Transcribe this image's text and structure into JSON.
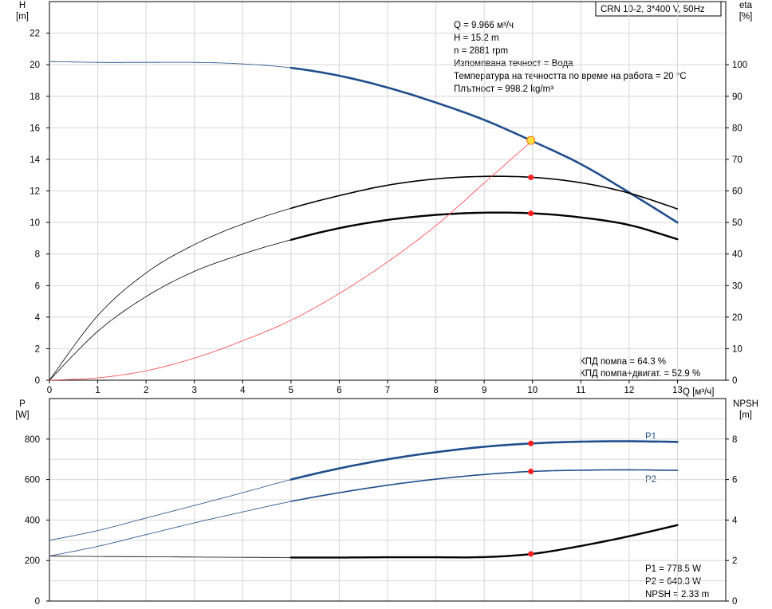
{
  "chart_data": [
    {
      "type": "line",
      "title": "CRN 10-2, 3*400 V, 50Hz",
      "xlabel": "Q [м³/ч]",
      "ylabel_left": [
        "H",
        "[m]"
      ],
      "ylabel_right": [
        "eta",
        "[%]"
      ],
      "xlim": [
        0,
        14
      ],
      "x_ticks": [
        0,
        1,
        2,
        3,
        4,
        5,
        6,
        7,
        8,
        9,
        10,
        11,
        12,
        13
      ],
      "ylim_left": [
        0,
        24
      ],
      "y_ticks_left": [
        0,
        2,
        4,
        6,
        8,
        10,
        12,
        14,
        16,
        18,
        20,
        22
      ],
      "ylim_right": [
        0,
        120
      ],
      "y_ticks_right": [
        0,
        10,
        20,
        30,
        40,
        50,
        60,
        70,
        80,
        90,
        100
      ],
      "grid": true,
      "info_lines": [
        "Q = 9.966 м³/ч",
        "H = 15.2 m",
        "n = 2881 rpm",
        "Изпомпвана течност = Вода",
        "Температура на течността по време на работа = 20 °C",
        "Плътност = 998.2 kg/m³"
      ],
      "efficiency_lines": [
        "КПД помпа = 64.3 %",
        "КПД помпа+двигат. = 52.9 %"
      ],
      "series": [
        {
          "axis": "left",
          "color": "#1f4e8c",
          "x": [
            0,
            1,
            2,
            3,
            4,
            5,
            6,
            7,
            8,
            9,
            10,
            11,
            12,
            13
          ],
          "values": [
            20.2,
            20.15,
            20.15,
            20.15,
            20.05,
            19.8,
            19.3,
            18.55,
            17.6,
            16.5,
            15.15,
            13.7,
            11.9,
            10.0
          ]
        },
        {
          "axis": "right",
          "color": "#000000",
          "x": [
            0,
            1,
            2,
            3,
            4,
            5,
            6,
            7,
            8,
            9,
            10,
            11,
            12,
            13
          ],
          "values": [
            0,
            20.5,
            34,
            43,
            49.5,
            54.5,
            58.5,
            61.8,
            63.8,
            64.6,
            64.3,
            62.6,
            59.3,
            54.3
          ]
        },
        {
          "axis": "right",
          "color": "#000000",
          "x": [
            0,
            1,
            2,
            3,
            4,
            5,
            6,
            7,
            8,
            9,
            10,
            11,
            12,
            13
          ],
          "values": [
            0,
            15.5,
            26.5,
            34.5,
            40,
            44.5,
            48.2,
            50.8,
            52.4,
            53.1,
            52.9,
            51.6,
            49.2,
            44.7
          ]
        },
        {
          "axis": "left",
          "color": "#ff4040",
          "x": [
            0,
            1,
            2,
            3,
            4,
            5,
            6,
            7,
            8,
            9,
            10
          ],
          "values": [
            0,
            0.15,
            0.6,
            1.4,
            2.5,
            3.8,
            5.5,
            7.5,
            9.8,
            12.5,
            15.2
          ]
        }
      ],
      "duty_point": {
        "x": 9.966,
        "y": 15.2
      },
      "markers_right": [
        64.3,
        52.9
      ]
    },
    {
      "type": "line",
      "xlabel": "",
      "ylabel_left": [
        "P",
        "[W]"
      ],
      "ylabel_right": [
        "NPSH",
        "[m]"
      ],
      "xlim": [
        0,
        14
      ],
      "ylim_left": [
        0,
        1000
      ],
      "y_ticks_left": [
        0,
        200,
        400,
        600,
        800
      ],
      "ylim_right": [
        0,
        10
      ],
      "y_ticks_right": [
        0,
        2,
        4,
        6,
        8
      ],
      "grid": true,
      "readout_lines": [
        "P1 = 778.5 W",
        "P2 = 640.3 W",
        "NPSH = 2.33 m"
      ],
      "series": [
        {
          "name": "P1",
          "axis": "left",
          "color": "#1f4e8c",
          "x": [
            0,
            1,
            2,
            3,
            4,
            5,
            6,
            7,
            8,
            9,
            10,
            11,
            12,
            13
          ],
          "values": [
            300,
            348,
            410,
            472,
            535,
            600,
            655,
            700,
            735,
            762,
            778.5,
            787,
            789,
            786
          ]
        },
        {
          "name": "P2",
          "axis": "left",
          "color": "#1f4e8c",
          "x": [
            0,
            1,
            2,
            3,
            4,
            5,
            6,
            7,
            8,
            9,
            10,
            11,
            12,
            13
          ],
          "values": [
            222,
            270,
            328,
            386,
            440,
            492,
            535,
            572,
            602,
            625,
            640.3,
            646,
            648,
            645
          ]
        },
        {
          "name": "",
          "axis": "right",
          "color": "#000000",
          "x": [
            0,
            1,
            2,
            3,
            4,
            5,
            6,
            7,
            8,
            9,
            10,
            11,
            12,
            13
          ],
          "values": [
            2.22,
            2.2,
            2.19,
            2.17,
            2.16,
            2.15,
            2.15,
            2.16,
            2.16,
            2.17,
            2.33,
            2.72,
            3.2,
            3.75
          ]
        }
      ],
      "markers": [
        {
          "axis": "left",
          "value": 778.5
        },
        {
          "axis": "left",
          "value": 640.3
        },
        {
          "axis": "right",
          "value": 2.33
        }
      ],
      "marker_x": 9.966
    }
  ]
}
